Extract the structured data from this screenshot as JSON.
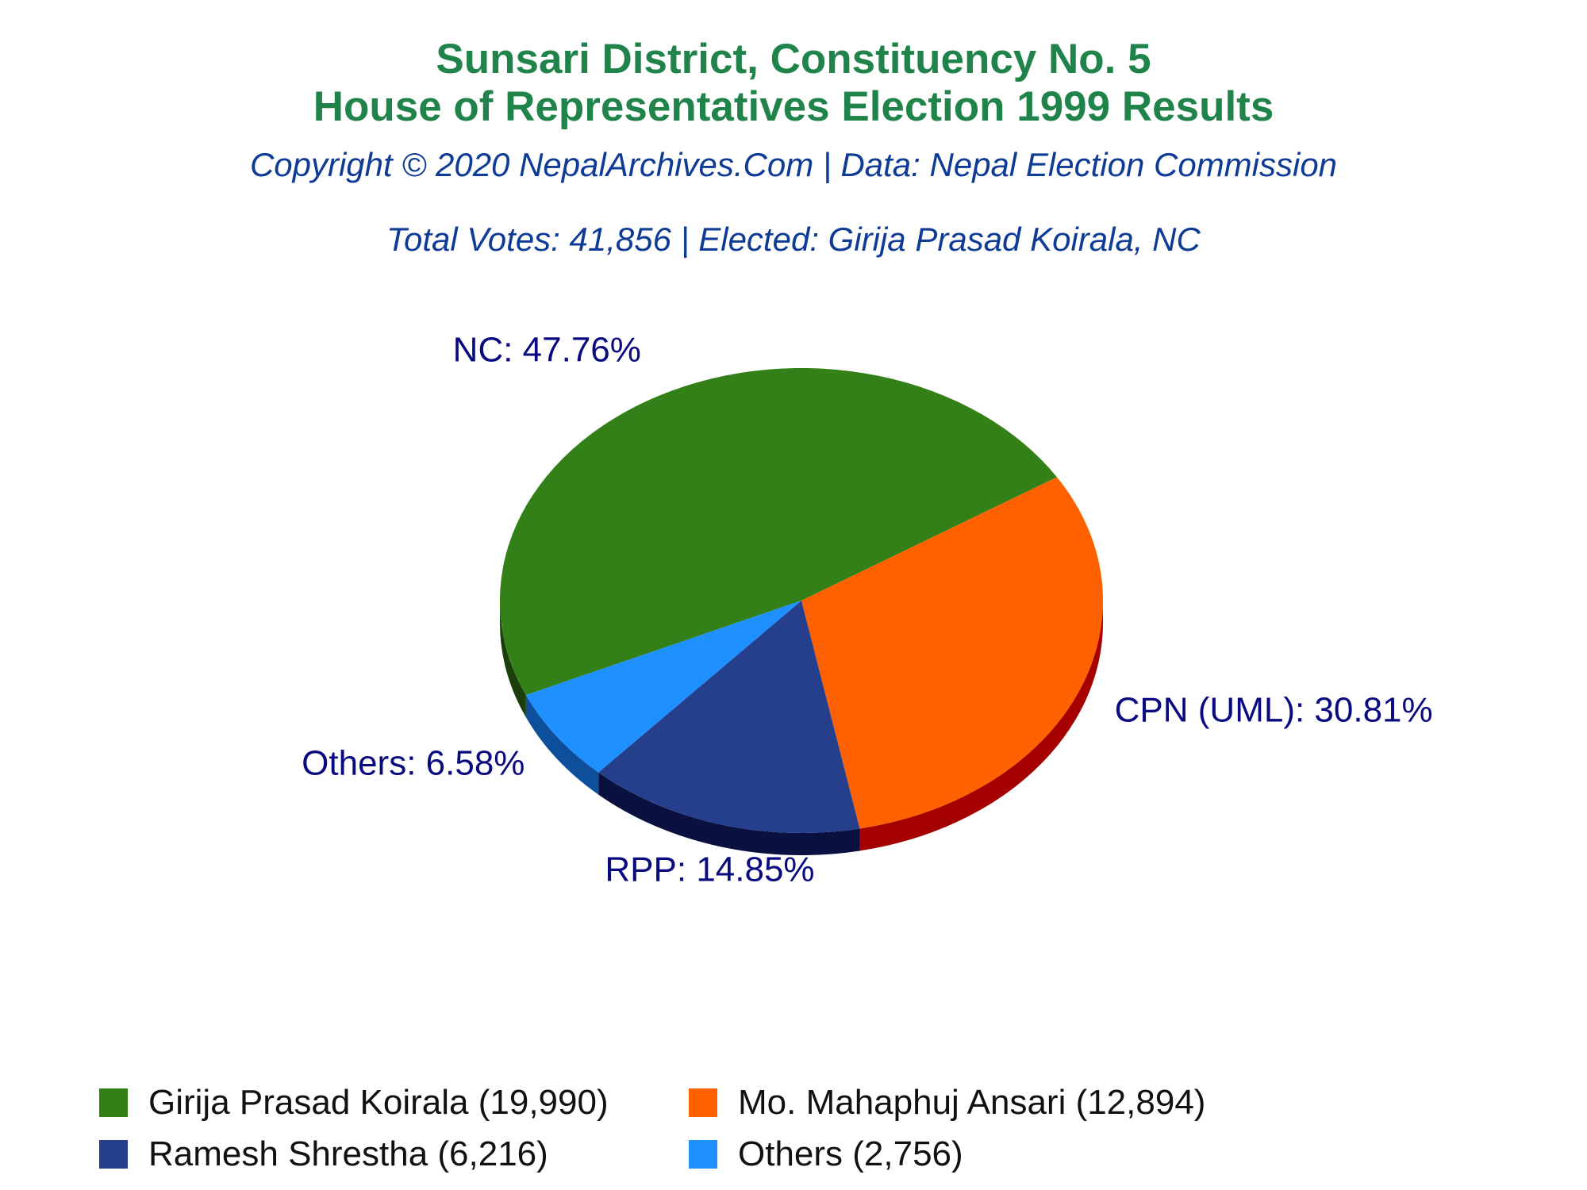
{
  "chart_data": {
    "type": "pie",
    "title": "Sunsari District, Constituency No. 5",
    "subtitle": "House of Representatives Election 1999 Results",
    "credit": "Copyright © 2020 NepalArchives.Com | Data: Nepal Election Commission",
    "summary": "Total Votes: 41,856 | Elected: Girija Prasad Koirala, NC",
    "slices": [
      {
        "party": "NC",
        "label": "NC: 47.76%",
        "percent": 47.76,
        "color": "#338018",
        "side_color": "#1a3f0b",
        "legend": "Girija Prasad Koirala (19,990)",
        "votes": 19990
      },
      {
        "party": "CPN (UML)",
        "label": "CPN (UML): 30.81%",
        "percent": 30.81,
        "color": "#ff6100",
        "side_color": "#a50000",
        "legend": "Mo. Mahaphuj Ansari (12,894)",
        "votes": 12894
      },
      {
        "party": "RPP",
        "label": "RPP: 14.85%",
        "percent": 14.85,
        "color": "#263f8c",
        "side_color": "#0a1040",
        "legend": "Ramesh Shrestha (6,216)",
        "votes": 6216
      },
      {
        "party": "Others",
        "label": "Others: 6.58%",
        "percent": 6.58,
        "color": "#1e90ff",
        "side_color": "#0d4f9a",
        "legend": "Others (2,756)",
        "votes": 2756
      }
    ],
    "legend_placement": "bottom"
  }
}
